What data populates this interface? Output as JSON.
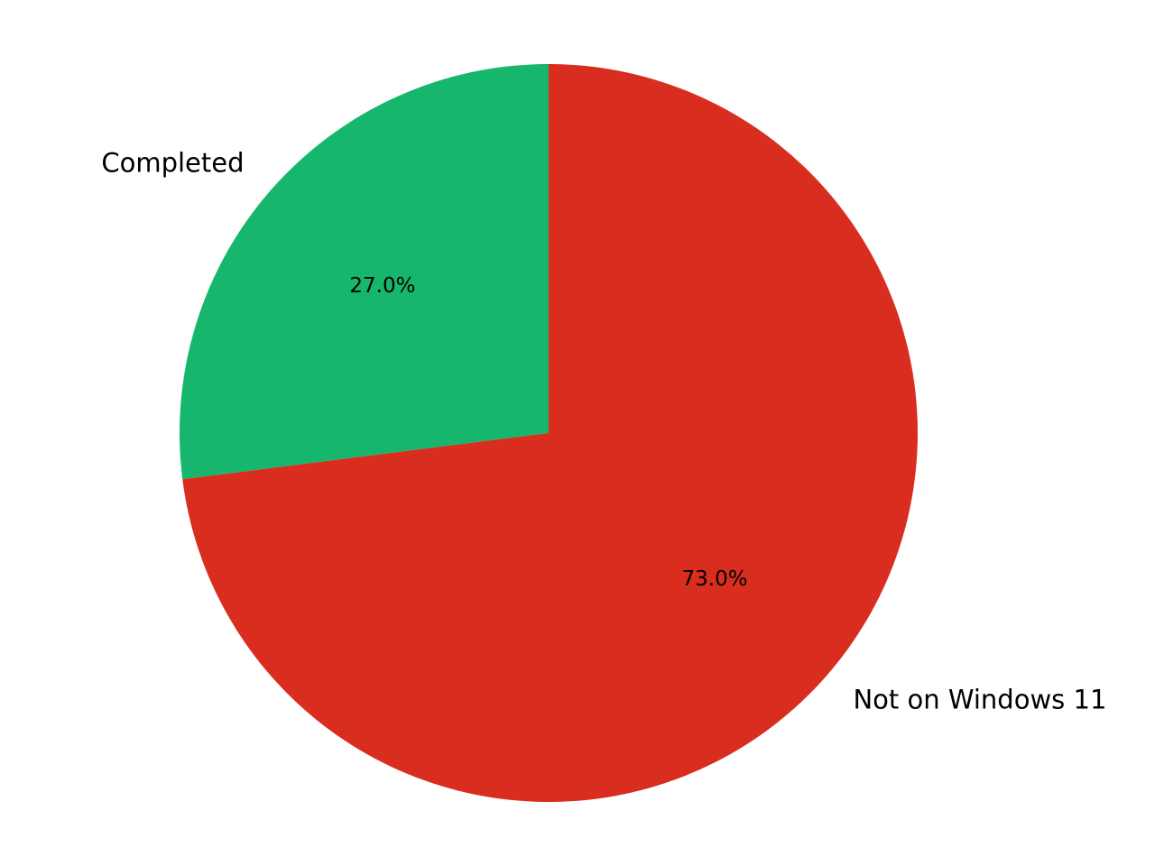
{
  "chart_data": {
    "type": "pie",
    "categories": [
      "Completed",
      "Not on Windows 11"
    ],
    "values": [
      27,
      73
    ],
    "value_labels": [
      "27.0%",
      "73.0%"
    ],
    "colors": [
      "#16b76c",
      "#d92d20"
    ],
    "start_angle": 90,
    "direction": "counterclockwise"
  }
}
